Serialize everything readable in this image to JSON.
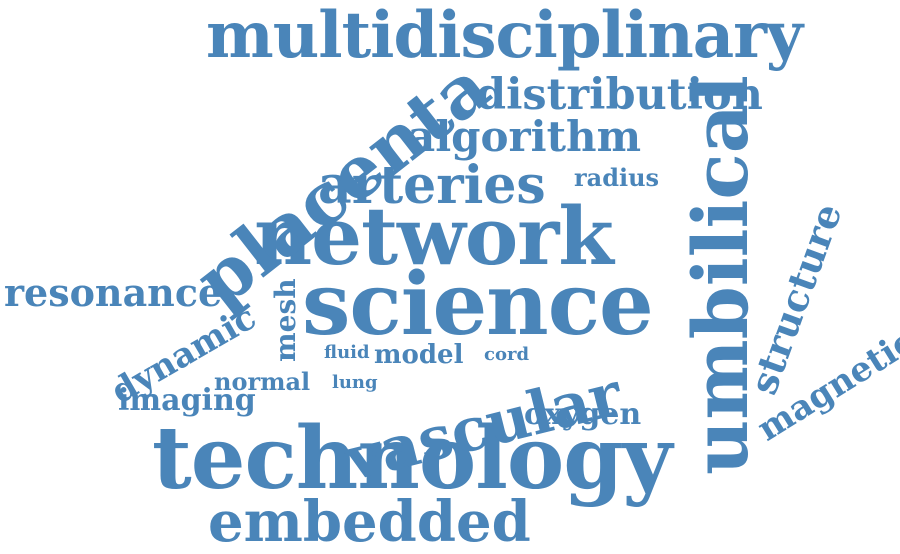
{
  "colors": {
    "background": "#ffffff",
    "word": "#4a85b9"
  },
  "words": {
    "multidisciplinary": "multidisciplinary",
    "distribution": "distribution",
    "placenta": "placenta",
    "algorithm": "algorithm",
    "umbilical": "umbilical",
    "arteries": "arteries",
    "radius": "radius",
    "network": "network",
    "structure": "structure",
    "resonance": "resonance",
    "science": "science",
    "mesh": "mesh",
    "dynamic": "dynamic",
    "magnetic": "magnetic",
    "fluid": "fluid",
    "model": "model",
    "cord": "cord",
    "vascular": "vascular",
    "normal": "normal",
    "lung": "lung",
    "imaging": "imaging",
    "oxygen": "oxygen",
    "technology": "technology",
    "embedded": "embedded"
  }
}
